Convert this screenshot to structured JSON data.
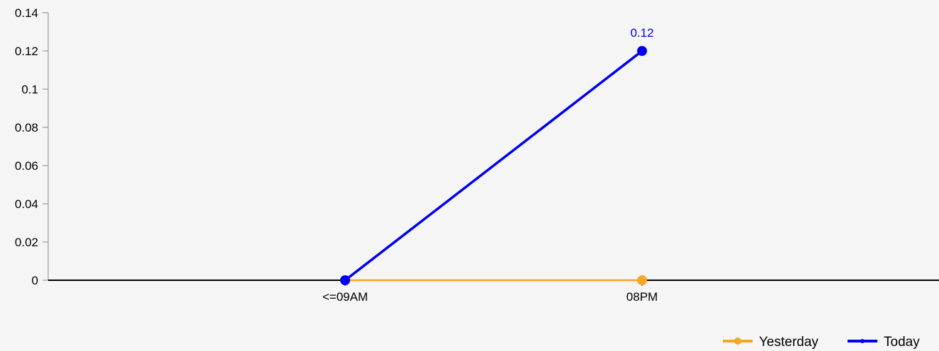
{
  "chart_data": {
    "type": "line",
    "title": "",
    "xlabel": "",
    "ylabel": "",
    "categories": [
      "<=09AM",
      "08PM"
    ],
    "ylim": [
      0,
      0.14
    ],
    "yticks": [
      0,
      0.02,
      0.04,
      0.06,
      0.08,
      0.1,
      0.12,
      0.14
    ],
    "ytick_labels": [
      "0",
      "0.02",
      "0.04",
      "0.06",
      "0.08",
      "0.1",
      "0.12",
      "0.14"
    ],
    "grid": false,
    "legend_position": "bottom-right",
    "series": [
      {
        "name": "Yesterday",
        "values": [
          0,
          0
        ],
        "color": "#F5A623",
        "data_labels": [
          null,
          null
        ]
      },
      {
        "name": "Today",
        "values": [
          0,
          0.12
        ],
        "color": "#0000EE",
        "data_labels": [
          null,
          "0.12"
        ]
      }
    ]
  }
}
